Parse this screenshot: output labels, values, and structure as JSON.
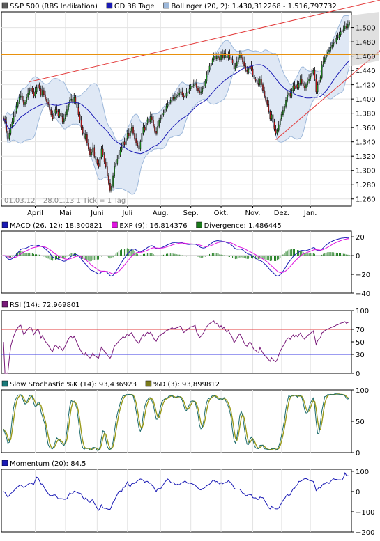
{
  "chart_data": [
    {
      "type": "candlestick",
      "panel": "price",
      "legend": [
        {
          "label": "S&P 500 (RBS Indikation)",
          "color": "#5b5b5b"
        },
        {
          "label": "GD 38 Tage",
          "color": "#1a1ab5"
        },
        {
          "label": "Bollinger (20, 2): 1.430,312268 - 1.516,797732",
          "color": "#9db8da"
        }
      ],
      "date_range_label": "01.03.12 – 28.01.13   1 Tick = 1 Tag",
      "x_ticks": [
        "April",
        "Mai",
        "Juni",
        "Juli",
        "Aug.",
        "Sep.",
        "Okt.",
        "Nov.",
        "Dez.",
        "Jan."
      ],
      "y_ticks": [
        "1.260",
        "1.280",
        "1.300",
        "1.320",
        "1.340",
        "1.360",
        "1.380",
        "1.400",
        "1.420",
        "1.440",
        "1.460",
        "1.480",
        "1.500"
      ],
      "ylim": [
        1250,
        1522
      ],
      "close": [
        1372,
        1368,
        1355,
        1345,
        1352,
        1362,
        1368,
        1375,
        1382,
        1390,
        1396,
        1402,
        1404,
        1398,
        1392,
        1396,
        1402,
        1408,
        1412,
        1415,
        1410,
        1404,
        1410,
        1416,
        1420,
        1414,
        1405,
        1412,
        1406,
        1400,
        1396,
        1392,
        1385,
        1378,
        1372,
        1380,
        1385,
        1382,
        1376,
        1380,
        1375,
        1368,
        1372,
        1378,
        1385,
        1392,
        1398,
        1400,
        1396,
        1402,
        1395,
        1388,
        1378,
        1370,
        1360,
        1352,
        1345,
        1350,
        1338,
        1330,
        1322,
        1325,
        1332,
        1320,
        1315,
        1310,
        1305,
        1318,
        1330,
        1322,
        1312,
        1305,
        1292,
        1282,
        1272,
        1278,
        1292,
        1305,
        1310,
        1316,
        1322,
        1328,
        1332,
        1340,
        1336,
        1345,
        1352,
        1348,
        1355,
        1360,
        1352,
        1345,
        1338,
        1335,
        1330,
        1340,
        1352,
        1360,
        1356,
        1366,
        1372,
        1368,
        1375,
        1370,
        1362,
        1355,
        1352,
        1362,
        1370,
        1372,
        1378,
        1380,
        1385,
        1390,
        1392,
        1395,
        1398,
        1402,
        1400,
        1402,
        1404,
        1405,
        1408,
        1410,
        1406,
        1402,
        1404,
        1408,
        1410,
        1414,
        1418,
        1418,
        1420,
        1422,
        1415,
        1412,
        1408,
        1410,
        1414,
        1418,
        1425,
        1434,
        1440,
        1446,
        1450,
        1455,
        1460,
        1456,
        1460,
        1458,
        1455,
        1462,
        1458,
        1464,
        1460,
        1457,
        1462,
        1458,
        1455,
        1450,
        1442,
        1446,
        1452,
        1458,
        1462,
        1458,
        1452,
        1446,
        1440,
        1438,
        1442,
        1446,
        1442,
        1434,
        1428,
        1426,
        1422,
        1420,
        1428,
        1420,
        1412,
        1404,
        1398,
        1392,
        1382,
        1372,
        1378,
        1368,
        1358,
        1352,
        1356,
        1364,
        1372,
        1378,
        1384,
        1390,
        1398,
        1405,
        1408,
        1404,
        1412,
        1418,
        1414,
        1420,
        1416,
        1422,
        1428,
        1422,
        1418,
        1415,
        1420,
        1425,
        1428,
        1432,
        1436,
        1440,
        1428,
        1410,
        1420,
        1426,
        1430,
        1448,
        1452,
        1458,
        1462,
        1466,
        1468,
        1472,
        1475,
        1478,
        1480,
        1485,
        1486,
        1490,
        1494,
        1496,
        1498,
        1502,
        1500,
        1504,
        1507
      ],
      "sma38_label": "GD 38 Tage",
      "trendlines": [
        {
          "color": "#e33a3a",
          "from_day": 18,
          "from_value": 1424,
          "to_day": 249,
          "to_value": 1532
        },
        {
          "color": "#e33a3a",
          "from_day": 189,
          "from_value": 1343,
          "to_day": 249,
          "to_value": 1470
        },
        {
          "color": "#e8900c",
          "level": 1462
        }
      ]
    },
    {
      "type": "line",
      "panel": "macd",
      "legend": [
        {
          "label": "MACD (26, 12): 18,300821",
          "color": "#1a1ab5"
        },
        {
          "label": "EXP (9): 16,814376",
          "color": "#e016e0"
        },
        {
          "label": "Divergence: 1,486445",
          "color": "#1a7a1a"
        }
      ],
      "y_ticks": [
        "20",
        "0",
        "−20",
        "−40"
      ],
      "ylim": [
        -40,
        26
      ]
    },
    {
      "type": "line",
      "panel": "rsi",
      "legend": [
        {
          "label": "RSI (14): 72,969801",
          "color": "#7a1a7a"
        }
      ],
      "y_ticks": [
        "100",
        "70",
        "50",
        "30",
        "0"
      ],
      "ylim": [
        0,
        100
      ],
      "levels": [
        70,
        30
      ]
    },
    {
      "type": "line",
      "panel": "stochastic",
      "legend": [
        {
          "label": "Slow Stochastic %K (14): 93,436923",
          "color": "#1a7a7a"
        },
        {
          "label": "%D (3): 93,899812",
          "color": "#7a7a1a"
        }
      ],
      "y_ticks": [
        "100",
        "50",
        "0"
      ],
      "ylim": [
        0,
        100
      ]
    },
    {
      "type": "line",
      "panel": "momentum",
      "legend": [
        {
          "label": "Momentum (20): 84,5",
          "color": "#1a1ab5"
        }
      ],
      "y_ticks": [
        "100",
        "0",
        "−100",
        "−200"
      ],
      "ylim": [
        -200,
        110
      ]
    }
  ]
}
